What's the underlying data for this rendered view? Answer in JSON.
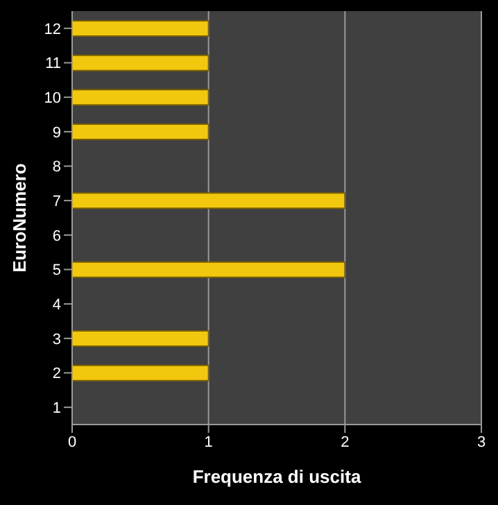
{
  "chart_data": {
    "type": "bar",
    "orientation": "horizontal",
    "xlabel": "Frequenza di uscita",
    "ylabel": "EuroNumero",
    "categories": [
      "12",
      "11",
      "10",
      "9",
      "8",
      "7",
      "6",
      "5",
      "4",
      "3",
      "2",
      "1"
    ],
    "series": [
      {
        "color": "#f2c80f",
        "values": [
          1,
          1,
          1,
          1,
          0,
          2,
          0,
          2,
          0,
          1,
          1,
          0
        ]
      }
    ],
    "xlim": [
      0,
      3
    ],
    "xticks": [
      0,
      1,
      2,
      3
    ],
    "grid": "x"
  }
}
